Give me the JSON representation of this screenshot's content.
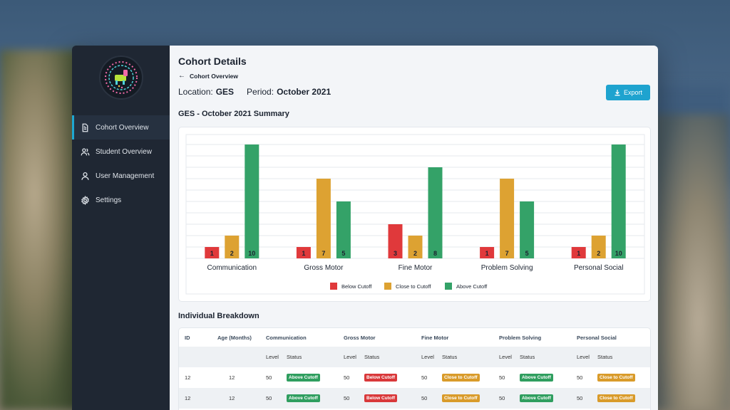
{
  "sidebar": {
    "items": [
      {
        "label": "Cohort Overview",
        "icon": "document-icon",
        "active": true
      },
      {
        "label": "Student Overview",
        "icon": "users-icon"
      },
      {
        "label": "User Management",
        "icon": "user-icon"
      },
      {
        "label": "Settings",
        "icon": "gear-icon"
      }
    ]
  },
  "header": {
    "title": "Cohort Details",
    "breadcrumb": "Cohort Overview",
    "location_label": "Location:",
    "location_value": "GES",
    "period_label": "Period:",
    "period_value": "October 2021",
    "export_label": "Export"
  },
  "summary_title": "GES - October 2021 Summary",
  "colors": {
    "below": "#e0393b",
    "close": "#dda232",
    "above": "#34a268",
    "accent": "#1ea3cf"
  },
  "chart_data": {
    "type": "bar",
    "categories": [
      "Communication",
      "Gross Motor",
      "Fine Motor",
      "Problem Solving",
      "Personal Social"
    ],
    "series": [
      {
        "name": "Below Cutoff",
        "values": [
          1,
          1,
          3,
          1,
          1
        ]
      },
      {
        "name": "Close to Cutoff",
        "values": [
          2,
          7,
          2,
          7,
          2
        ]
      },
      {
        "name": "Above Cutoff",
        "values": [
          10,
          5,
          8,
          5,
          10
        ]
      }
    ],
    "ylim": [
      0,
      10
    ],
    "grid": true,
    "legend": "bottom"
  },
  "breakdown": {
    "title": "Individual Breakdown",
    "headers": [
      "ID",
      "Age (Months)",
      "Communication",
      "Gross Motor",
      "Fine Motor",
      "Problem Solving",
      "Personal Social"
    ],
    "sub_level": "Level",
    "sub_status": "Status",
    "rows": [
      {
        "id": "12",
        "age": "12",
        "cells": [
          {
            "level": "50",
            "status": "Above Cutoff",
            "kind": "above"
          },
          {
            "level": "50",
            "status": "Below Cutoff",
            "kind": "below"
          },
          {
            "level": "50",
            "status": "Close to Cutoff",
            "kind": "close"
          },
          {
            "level": "50",
            "status": "Above Cutoff",
            "kind": "above"
          },
          {
            "level": "50",
            "status": "Close to Cutoff",
            "kind": "close"
          }
        ]
      },
      {
        "id": "12",
        "age": "12",
        "cells": [
          {
            "level": "50",
            "status": "Above Cutoff",
            "kind": "above"
          },
          {
            "level": "50",
            "status": "Below Cutoff",
            "kind": "below"
          },
          {
            "level": "50",
            "status": "Close to Cutoff",
            "kind": "close"
          },
          {
            "level": "50",
            "status": "Above Cutoff",
            "kind": "above"
          },
          {
            "level": "50",
            "status": "Close to Cutoff",
            "kind": "close"
          }
        ]
      }
    ]
  }
}
